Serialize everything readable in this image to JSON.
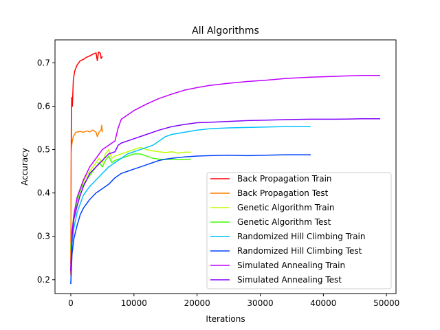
{
  "chart_data": {
    "type": "line",
    "title": "All Algorithms",
    "xlabel": "Iterations",
    "ylabel": "Accuracy",
    "xlim": [
      -2500,
      51500
    ],
    "ylim": [
      0.168,
      0.753
    ],
    "xticks": [
      0,
      10000,
      20000,
      30000,
      40000,
      50000
    ],
    "xtick_labels": [
      "0",
      "10000",
      "20000",
      "30000",
      "40000",
      "50000"
    ],
    "yticks": [
      0.2,
      0.3,
      0.4,
      0.5,
      0.6,
      0.7
    ],
    "ytick_labels": [
      "0.2",
      "0.3",
      "0.4",
      "0.5",
      "0.6",
      "0.7"
    ],
    "grid": false,
    "legend_position": "lower right",
    "series": [
      {
        "name": "Back Propagation Train",
        "color": "#ff0000",
        "points": [
          [
            0,
            0.21
          ],
          [
            80,
            0.55
          ],
          [
            150,
            0.62
          ],
          [
            250,
            0.6
          ],
          [
            400,
            0.66
          ],
          [
            600,
            0.68
          ],
          [
            1000,
            0.695
          ],
          [
            1500,
            0.705
          ],
          [
            2000,
            0.708
          ],
          [
            2500,
            0.713
          ],
          [
            3000,
            0.716
          ],
          [
            3500,
            0.72
          ],
          [
            4000,
            0.723
          ],
          [
            4200,
            0.705
          ],
          [
            4400,
            0.725
          ],
          [
            4700,
            0.722
          ],
          [
            4800,
            0.71
          ],
          [
            5000,
            0.715
          ]
        ]
      },
      {
        "name": "Back Propagation Test",
        "color": "#ff8000",
        "points": [
          [
            0,
            0.24
          ],
          [
            80,
            0.49
          ],
          [
            150,
            0.51
          ],
          [
            250,
            0.52
          ],
          [
            400,
            0.53
          ],
          [
            600,
            0.535
          ],
          [
            800,
            0.54
          ],
          [
            1500,
            0.542
          ],
          [
            2000,
            0.54
          ],
          [
            2500,
            0.543
          ],
          [
            3000,
            0.541
          ],
          [
            3500,
            0.545
          ],
          [
            4000,
            0.54
          ],
          [
            4200,
            0.53
          ],
          [
            4500,
            0.541
          ],
          [
            4800,
            0.545
          ],
          [
            4900,
            0.556
          ],
          [
            5000,
            0.54
          ]
        ]
      },
      {
        "name": "Genetic Algorithm Train",
        "color": "#bfff00",
        "points": [
          [
            0,
            0.27
          ],
          [
            300,
            0.33
          ],
          [
            600,
            0.36
          ],
          [
            1000,
            0.385
          ],
          [
            1500,
            0.41
          ],
          [
            2000,
            0.425
          ],
          [
            2500,
            0.44
          ],
          [
            3000,
            0.45
          ],
          [
            3500,
            0.46
          ],
          [
            4000,
            0.47
          ],
          [
            4500,
            0.48
          ],
          [
            5000,
            0.47
          ],
          [
            5500,
            0.49
          ],
          [
            6000,
            0.5
          ],
          [
            6500,
            0.48
          ],
          [
            7000,
            0.485
          ],
          [
            8000,
            0.49
          ],
          [
            9000,
            0.495
          ],
          [
            10000,
            0.5
          ],
          [
            11000,
            0.505
          ],
          [
            12000,
            0.5
          ],
          [
            13000,
            0.497
          ],
          [
            14000,
            0.495
          ],
          [
            15000,
            0.493
          ],
          [
            16000,
            0.495
          ],
          [
            17000,
            0.492
          ],
          [
            18000,
            0.494
          ],
          [
            19000,
            0.494
          ]
        ]
      },
      {
        "name": "Genetic Algorithm Test",
        "color": "#40ff00",
        "points": [
          [
            0,
            0.27
          ],
          [
            300,
            0.32
          ],
          [
            600,
            0.355
          ],
          [
            1000,
            0.38
          ],
          [
            1500,
            0.405
          ],
          [
            2000,
            0.42
          ],
          [
            2500,
            0.43
          ],
          [
            3000,
            0.44
          ],
          [
            3500,
            0.45
          ],
          [
            4000,
            0.46
          ],
          [
            4500,
            0.47
          ],
          [
            5000,
            0.46
          ],
          [
            5500,
            0.475
          ],
          [
            6000,
            0.485
          ],
          [
            6500,
            0.47
          ],
          [
            7000,
            0.475
          ],
          [
            8000,
            0.48
          ],
          [
            9000,
            0.485
          ],
          [
            10000,
            0.49
          ],
          [
            11000,
            0.49
          ],
          [
            12000,
            0.485
          ],
          [
            13000,
            0.48
          ],
          [
            14000,
            0.478
          ],
          [
            15000,
            0.477
          ],
          [
            16000,
            0.478
          ],
          [
            17000,
            0.477
          ],
          [
            18000,
            0.477
          ],
          [
            19000,
            0.478
          ]
        ]
      },
      {
        "name": "Randomized Hill Climbing Train",
        "color": "#00c0ff",
        "points": [
          [
            0,
            0.19
          ],
          [
            200,
            0.28
          ],
          [
            500,
            0.32
          ],
          [
            1000,
            0.355
          ],
          [
            1500,
            0.375
          ],
          [
            2000,
            0.395
          ],
          [
            3000,
            0.415
          ],
          [
            4000,
            0.43
          ],
          [
            5000,
            0.445
          ],
          [
            6000,
            0.46
          ],
          [
            7000,
            0.47
          ],
          [
            8000,
            0.48
          ],
          [
            9000,
            0.49
          ],
          [
            10000,
            0.495
          ],
          [
            11000,
            0.5
          ],
          [
            12000,
            0.505
          ],
          [
            13000,
            0.51
          ],
          [
            14000,
            0.52
          ],
          [
            15000,
            0.53
          ],
          [
            16000,
            0.535
          ],
          [
            18000,
            0.54
          ],
          [
            20000,
            0.545
          ],
          [
            22000,
            0.548
          ],
          [
            25000,
            0.55
          ],
          [
            28000,
            0.551
          ],
          [
            31000,
            0.552
          ],
          [
            34000,
            0.553
          ],
          [
            38000,
            0.553
          ]
        ]
      },
      {
        "name": "Randomized Hill Climbing Test",
        "color": "#0040ff",
        "points": [
          [
            0,
            0.19
          ],
          [
            200,
            0.26
          ],
          [
            500,
            0.295
          ],
          [
            1000,
            0.325
          ],
          [
            1500,
            0.35
          ],
          [
            2000,
            0.365
          ],
          [
            3000,
            0.385
          ],
          [
            4000,
            0.4
          ],
          [
            5000,
            0.41
          ],
          [
            6000,
            0.42
          ],
          [
            7000,
            0.435
          ],
          [
            8000,
            0.445
          ],
          [
            9000,
            0.45
          ],
          [
            10000,
            0.455
          ],
          [
            11000,
            0.46
          ],
          [
            12000,
            0.465
          ],
          [
            13000,
            0.47
          ],
          [
            14000,
            0.475
          ],
          [
            15000,
            0.478
          ],
          [
            16000,
            0.48
          ],
          [
            18000,
            0.483
          ],
          [
            20000,
            0.485
          ],
          [
            22000,
            0.486
          ],
          [
            25000,
            0.487
          ],
          [
            28000,
            0.486
          ],
          [
            31000,
            0.487
          ],
          [
            34000,
            0.488
          ],
          [
            38000,
            0.488
          ]
        ]
      },
      {
        "name": "Simulated Annealing Train",
        "color": "#bf00ff",
        "points": [
          [
            0,
            0.22
          ],
          [
            200,
            0.31
          ],
          [
            500,
            0.35
          ],
          [
            1000,
            0.39
          ],
          [
            1500,
            0.41
          ],
          [
            2000,
            0.43
          ],
          [
            2500,
            0.445
          ],
          [
            3000,
            0.46
          ],
          [
            4000,
            0.48
          ],
          [
            5000,
            0.5
          ],
          [
            6000,
            0.51
          ],
          [
            7000,
            0.52
          ],
          [
            7500,
            0.55
          ],
          [
            8000,
            0.57
          ],
          [
            9000,
            0.58
          ],
          [
            10000,
            0.59
          ],
          [
            12000,
            0.605
          ],
          [
            14000,
            0.618
          ],
          [
            16000,
            0.628
          ],
          [
            18000,
            0.637
          ],
          [
            20000,
            0.643
          ],
          [
            22000,
            0.648
          ],
          [
            25000,
            0.653
          ],
          [
            28000,
            0.657
          ],
          [
            31000,
            0.66
          ],
          [
            34000,
            0.664
          ],
          [
            38000,
            0.667
          ],
          [
            42000,
            0.669
          ],
          [
            46000,
            0.671
          ],
          [
            49000,
            0.671
          ]
        ]
      },
      {
        "name": "Simulated Annealing Test",
        "color": "#8000ff",
        "points": [
          [
            0,
            0.22
          ],
          [
            200,
            0.3
          ],
          [
            500,
            0.34
          ],
          [
            1000,
            0.37
          ],
          [
            1500,
            0.395
          ],
          [
            2000,
            0.415
          ],
          [
            2500,
            0.43
          ],
          [
            3000,
            0.445
          ],
          [
            4000,
            0.46
          ],
          [
            5000,
            0.475
          ],
          [
            6000,
            0.49
          ],
          [
            7000,
            0.495
          ],
          [
            7500,
            0.51
          ],
          [
            8000,
            0.515
          ],
          [
            9000,
            0.52
          ],
          [
            10000,
            0.525
          ],
          [
            12000,
            0.535
          ],
          [
            14000,
            0.545
          ],
          [
            16000,
            0.553
          ],
          [
            18000,
            0.558
          ],
          [
            20000,
            0.562
          ],
          [
            22000,
            0.563
          ],
          [
            25000,
            0.565
          ],
          [
            28000,
            0.567
          ],
          [
            31000,
            0.568
          ],
          [
            34000,
            0.569
          ],
          [
            38000,
            0.57
          ],
          [
            42000,
            0.57
          ],
          [
            46000,
            0.571
          ],
          [
            49000,
            0.571
          ]
        ]
      }
    ]
  }
}
